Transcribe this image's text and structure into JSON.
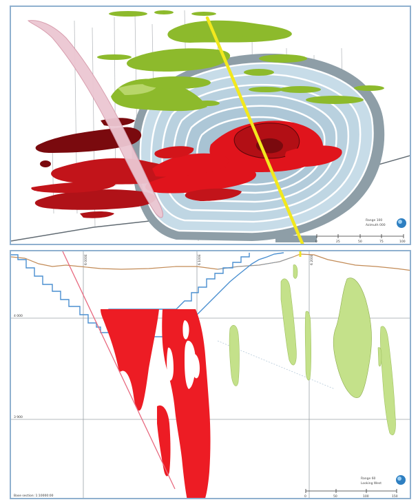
{
  "top_view": {
    "caption_line1": "Range 100",
    "caption_line2": "Azimuth 000",
    "scale_ticks": [
      "0",
      "25",
      "50",
      "75",
      "100"
    ],
    "colors": {
      "pit": "#c7dce8",
      "pit_rim": "#8e9ea7",
      "ore_red": "#e0141c",
      "ore_dark": "#7a0a0e",
      "ore_green": "#8dba2c",
      "fault": "#e9b9c6",
      "section_line": "#f2e81e"
    }
  },
  "section_view": {
    "grid_labels_top": [
      "6 000E",
      "6 100E",
      "6 200E"
    ],
    "grid_labels_left": [
      "4 000",
      "3 900"
    ],
    "bottom_left_label": "Base section: 1:10000:00",
    "caption_line1": "Range 60",
    "caption_line2": "Looking West",
    "scale_ticks": [
      "0",
      "50",
      "100",
      "150"
    ],
    "colors": {
      "ore_red": "#ed1c24",
      "ore_green": "#c4e18a",
      "pit_outline": "#4a8fd0",
      "topo": "#c28a55",
      "fault": "#e86a80",
      "grid": "#9aa0a6"
    }
  }
}
